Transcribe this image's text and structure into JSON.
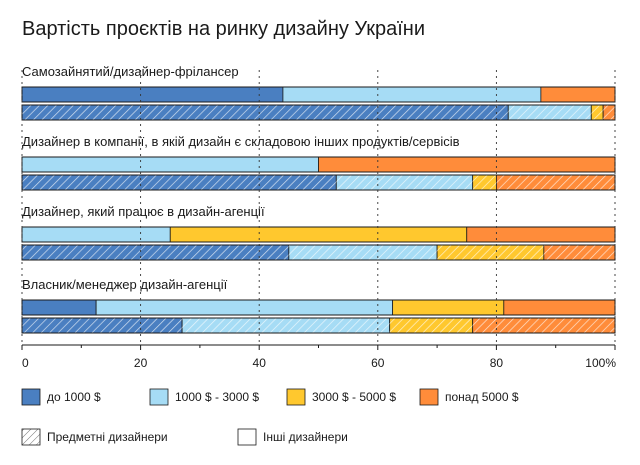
{
  "chart_data": {
    "type": "bar",
    "orientation": "horizontal",
    "stacked": true,
    "title": "Вартість проєктів на ринку дизайну України",
    "xlim": [
      0,
      100
    ],
    "x_ticks": [
      "0",
      "20",
      "40",
      "60",
      "80",
      "100%"
    ],
    "tick_values": [
      0,
      20,
      40,
      60,
      80,
      100
    ],
    "series_names": [
      "до 1000 $",
      "1000 $ - 3000 $",
      "3000 $ - 5000 $",
      "понад 5000 $"
    ],
    "colors": [
      "#4a7fc1",
      "#a6dcf5",
      "#ffc82e",
      "#ff8c3a"
    ],
    "groups": [
      {
        "label": "Самозайнятий/дизайнер-фрілансер",
        "bars": [
          {
            "variant": "Інші дизайнери",
            "values": [
              44,
              43.5,
              0,
              12.5
            ]
          },
          {
            "variant": "Предметні дизайнери",
            "values": [
              82,
              14,
              2,
              2
            ]
          }
        ]
      },
      {
        "label": "Дизайнер в компанії, в якій дизайн є складовою інших продуктів/сервісів",
        "bars": [
          {
            "variant": "Інші дизайнери",
            "values": [
              0,
              50,
              0,
              50
            ]
          },
          {
            "variant": "Предметні дизайнери",
            "values": [
              53,
              23,
              4,
              20
            ]
          }
        ]
      },
      {
        "label": "Дизайнер, який працює в дизайн-агенції",
        "bars": [
          {
            "variant": "Інші дизайнери",
            "values": [
              0,
              25,
              50,
              25
            ]
          },
          {
            "variant": "Предметні дизайнери",
            "values": [
              45,
              25,
              18,
              12
            ]
          }
        ]
      },
      {
        "label": "Власник/менеджер дизайн-агенції",
        "bars": [
          {
            "variant": "Інші дизайнери",
            "values": [
              12.5,
              50,
              18.75,
              18.75
            ]
          },
          {
            "variant": "Предметні дизайнери",
            "values": [
              27,
              35,
              14,
              24
            ]
          }
        ]
      }
    ],
    "legend": {
      "series": [
        "до 1000 $",
        "1000 $ - 3000 $",
        "3000 $ - 5000 $",
        "понад 5000 $"
      ],
      "patterns": [
        {
          "label": "Предметні дизайнери",
          "style": "hatched"
        },
        {
          "label": "Інші дизайнери",
          "style": "plain"
        }
      ],
      "position": "bottom"
    },
    "grid": "dashed vertical"
  }
}
